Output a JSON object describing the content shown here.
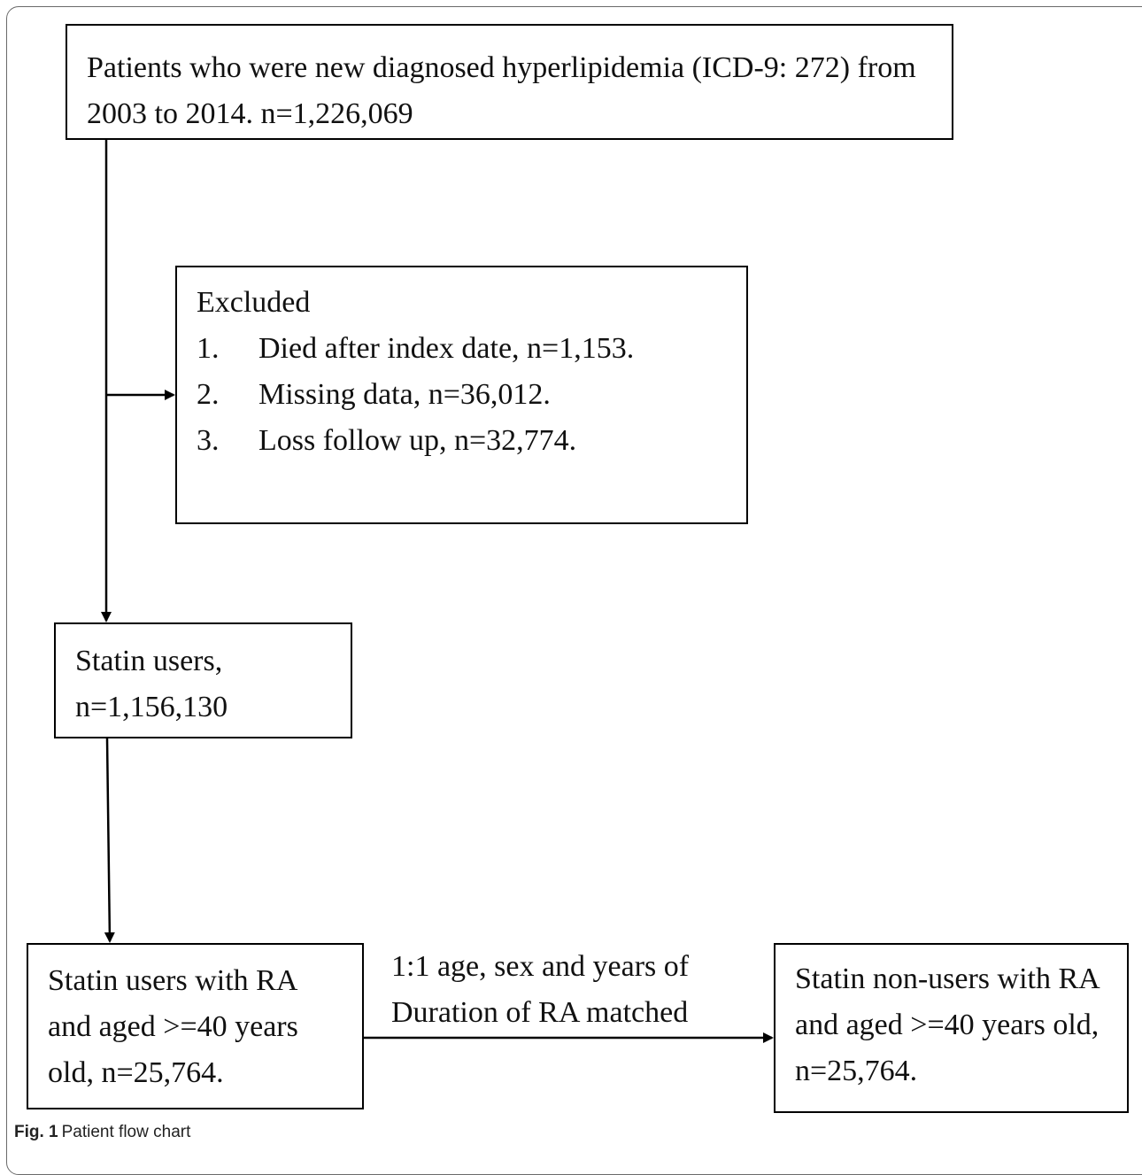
{
  "boxes": {
    "initial": [
      "Patients who were new diagnosed hyperlipidemia (ICD-9: 272) from",
      "2003 to 2014. n=1,226,069"
    ],
    "excluded": {
      "title": "Excluded",
      "items": [
        {
          "num": "1.",
          "text": "Died after index date, n=1,153."
        },
        {
          "num": "2.",
          "text": "Missing data, n=36,012."
        },
        {
          "num": "3.",
          "text": "Loss follow up, n=32,774."
        }
      ]
    },
    "statin_users": [
      "Statin users,",
      "n=1,156,130"
    ],
    "statin_users_ra": [
      "Statin users with RA",
      "and aged >=40 years",
      "old, n=25,764."
    ],
    "statin_nonusers_ra": [
      "Statin non-users with RA",
      "and aged >=40 years old,",
      "n=25,764."
    ]
  },
  "match_label": [
    "1:1 age, sex and years of",
    "Duration of RA matched"
  ],
  "caption": {
    "prefix": "Fig. 1",
    "text": "Patient flow chart"
  }
}
